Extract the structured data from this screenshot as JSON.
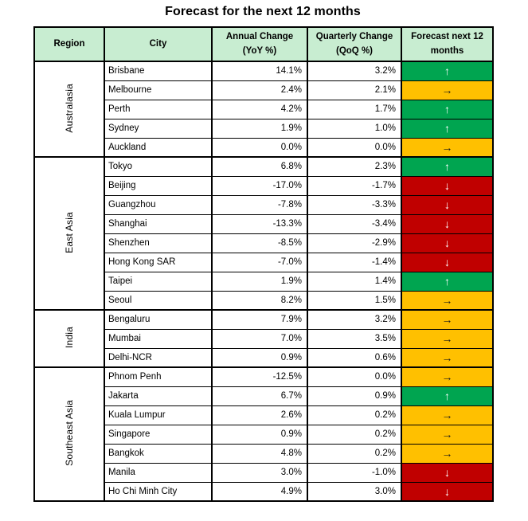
{
  "title": "Forecast for the next 12 months",
  "colors": {
    "header_bg": "#C8EDD1",
    "up_bg": "#00A550",
    "steady_bg": "#FFC000",
    "down_bg": "#C00000",
    "up_arrow": "#FFFFFF",
    "steady_arrow": "#1A1A1A",
    "down_arrow": "#FFFFFF",
    "border": "#000000",
    "text": "#000000"
  },
  "arrows": {
    "up": "↑",
    "steady": "→",
    "down": "↓"
  },
  "chart_data": {
    "type": "table",
    "title": "Forecast for the next 12 months",
    "header": {
      "region": "Region",
      "city": "City",
      "annual_line1": "Annual Change",
      "annual_line2": "(YoY %)",
      "quarterly_line1": "Quarterly Change",
      "quarterly_line2": "(QoQ %)",
      "forecast_line1": "Forecast next 12",
      "forecast_line2": "months"
    },
    "columns": [
      "Region",
      "City",
      "Annual Change (YoY %)",
      "Quarterly Change (QoQ %)",
      "Forecast next 12 months"
    ],
    "groups": [
      {
        "region": "Australasia",
        "rows": [
          {
            "city": "Brisbane",
            "yoy": "14.1%",
            "qoq": "3.2%",
            "forecast": "up"
          },
          {
            "city": "Melbourne",
            "yoy": "2.4%",
            "qoq": "2.1%",
            "forecast": "steady"
          },
          {
            "city": "Perth",
            "yoy": "4.2%",
            "qoq": "1.7%",
            "forecast": "up"
          },
          {
            "city": "Sydney",
            "yoy": "1.9%",
            "qoq": "1.0%",
            "forecast": "up"
          },
          {
            "city": "Auckland",
            "yoy": "0.0%",
            "qoq": "0.0%",
            "forecast": "steady"
          }
        ]
      },
      {
        "region": "East Asia",
        "rows": [
          {
            "city": "Tokyo",
            "yoy": "6.8%",
            "qoq": "2.3%",
            "forecast": "up"
          },
          {
            "city": "Beijing",
            "yoy": "-17.0%",
            "qoq": "-1.7%",
            "forecast": "down"
          },
          {
            "city": "Guangzhou",
            "yoy": "-7.8%",
            "qoq": "-3.3%",
            "forecast": "down"
          },
          {
            "city": "Shanghai",
            "yoy": "-13.3%",
            "qoq": "-3.4%",
            "forecast": "down"
          },
          {
            "city": "Shenzhen",
            "yoy": "-8.5%",
            "qoq": "-2.9%",
            "forecast": "down"
          },
          {
            "city": "Hong Kong SAR",
            "yoy": "-7.0%",
            "qoq": "-1.4%",
            "forecast": "down"
          },
          {
            "city": "Taipei",
            "yoy": "1.9%",
            "qoq": "1.4%",
            "forecast": "up"
          },
          {
            "city": "Seoul",
            "yoy": "8.2%",
            "qoq": "1.5%",
            "forecast": "steady"
          }
        ]
      },
      {
        "region": "India",
        "rows": [
          {
            "city": "Bengaluru",
            "yoy": "7.9%",
            "qoq": "3.2%",
            "forecast": "steady"
          },
          {
            "city": "Mumbai",
            "yoy": "7.0%",
            "qoq": "3.5%",
            "forecast": "steady"
          },
          {
            "city": "Delhi-NCR",
            "yoy": "0.9%",
            "qoq": "0.6%",
            "forecast": "steady"
          }
        ]
      },
      {
        "region": "Southeast Asia",
        "rows": [
          {
            "city": "Phnom Penh",
            "yoy": "-12.5%",
            "qoq": "0.0%",
            "forecast": "steady"
          },
          {
            "city": "Jakarta",
            "yoy": "6.7%",
            "qoq": "0.9%",
            "forecast": "up"
          },
          {
            "city": "Kuala Lumpur",
            "yoy": "2.6%",
            "qoq": "0.2%",
            "forecast": "steady"
          },
          {
            "city": "Singapore",
            "yoy": "0.9%",
            "qoq": "0.2%",
            "forecast": "steady"
          },
          {
            "city": "Bangkok",
            "yoy": "4.8%",
            "qoq": "0.2%",
            "forecast": "steady"
          },
          {
            "city": "Manila",
            "yoy": "3.0%",
            "qoq": "-1.0%",
            "forecast": "down"
          },
          {
            "city": "Ho Chi Minh City",
            "yoy": "4.9%",
            "qoq": "3.0%",
            "forecast": "down"
          }
        ]
      }
    ]
  }
}
